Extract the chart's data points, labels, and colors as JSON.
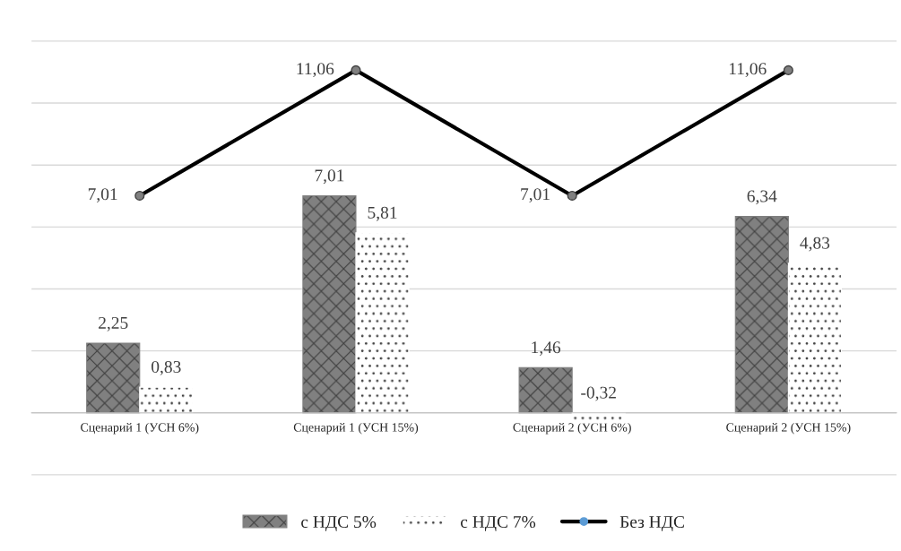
{
  "chart_data": {
    "type": "bar",
    "categories": [
      "Сценарий 1 (УСН 6%)",
      "Сценарий 1 (УСН 15%)",
      "Сценарий 2 (УСН 6%)",
      "Сценарий 2 (УСН 15%)"
    ],
    "series": [
      {
        "name": "с НДС 5%",
        "color": "#808080",
        "values": [
          2.25,
          7.01,
          1.46,
          6.34
        ],
        "value_labels": [
          "2,25",
          "7,01",
          "1,46",
          "6,34"
        ]
      },
      {
        "name": "с НДС 7%",
        "color": "#ffffff",
        "values": [
          0.83,
          5.81,
          -0.32,
          4.83
        ],
        "value_labels": [
          "0,83",
          "5,81",
          "-0,32",
          "4,83"
        ]
      },
      {
        "name": "Без НДС",
        "type": "line",
        "color": "#000000",
        "marker": "circle",
        "values": [
          7.01,
          11.06,
          7.01,
          11.06
        ],
        "value_labels": [
          "7,01",
          "11,06",
          "7,01",
          "11,06"
        ]
      }
    ],
    "grid": "y",
    "legend": "bottom",
    "tick_labels": "x"
  }
}
